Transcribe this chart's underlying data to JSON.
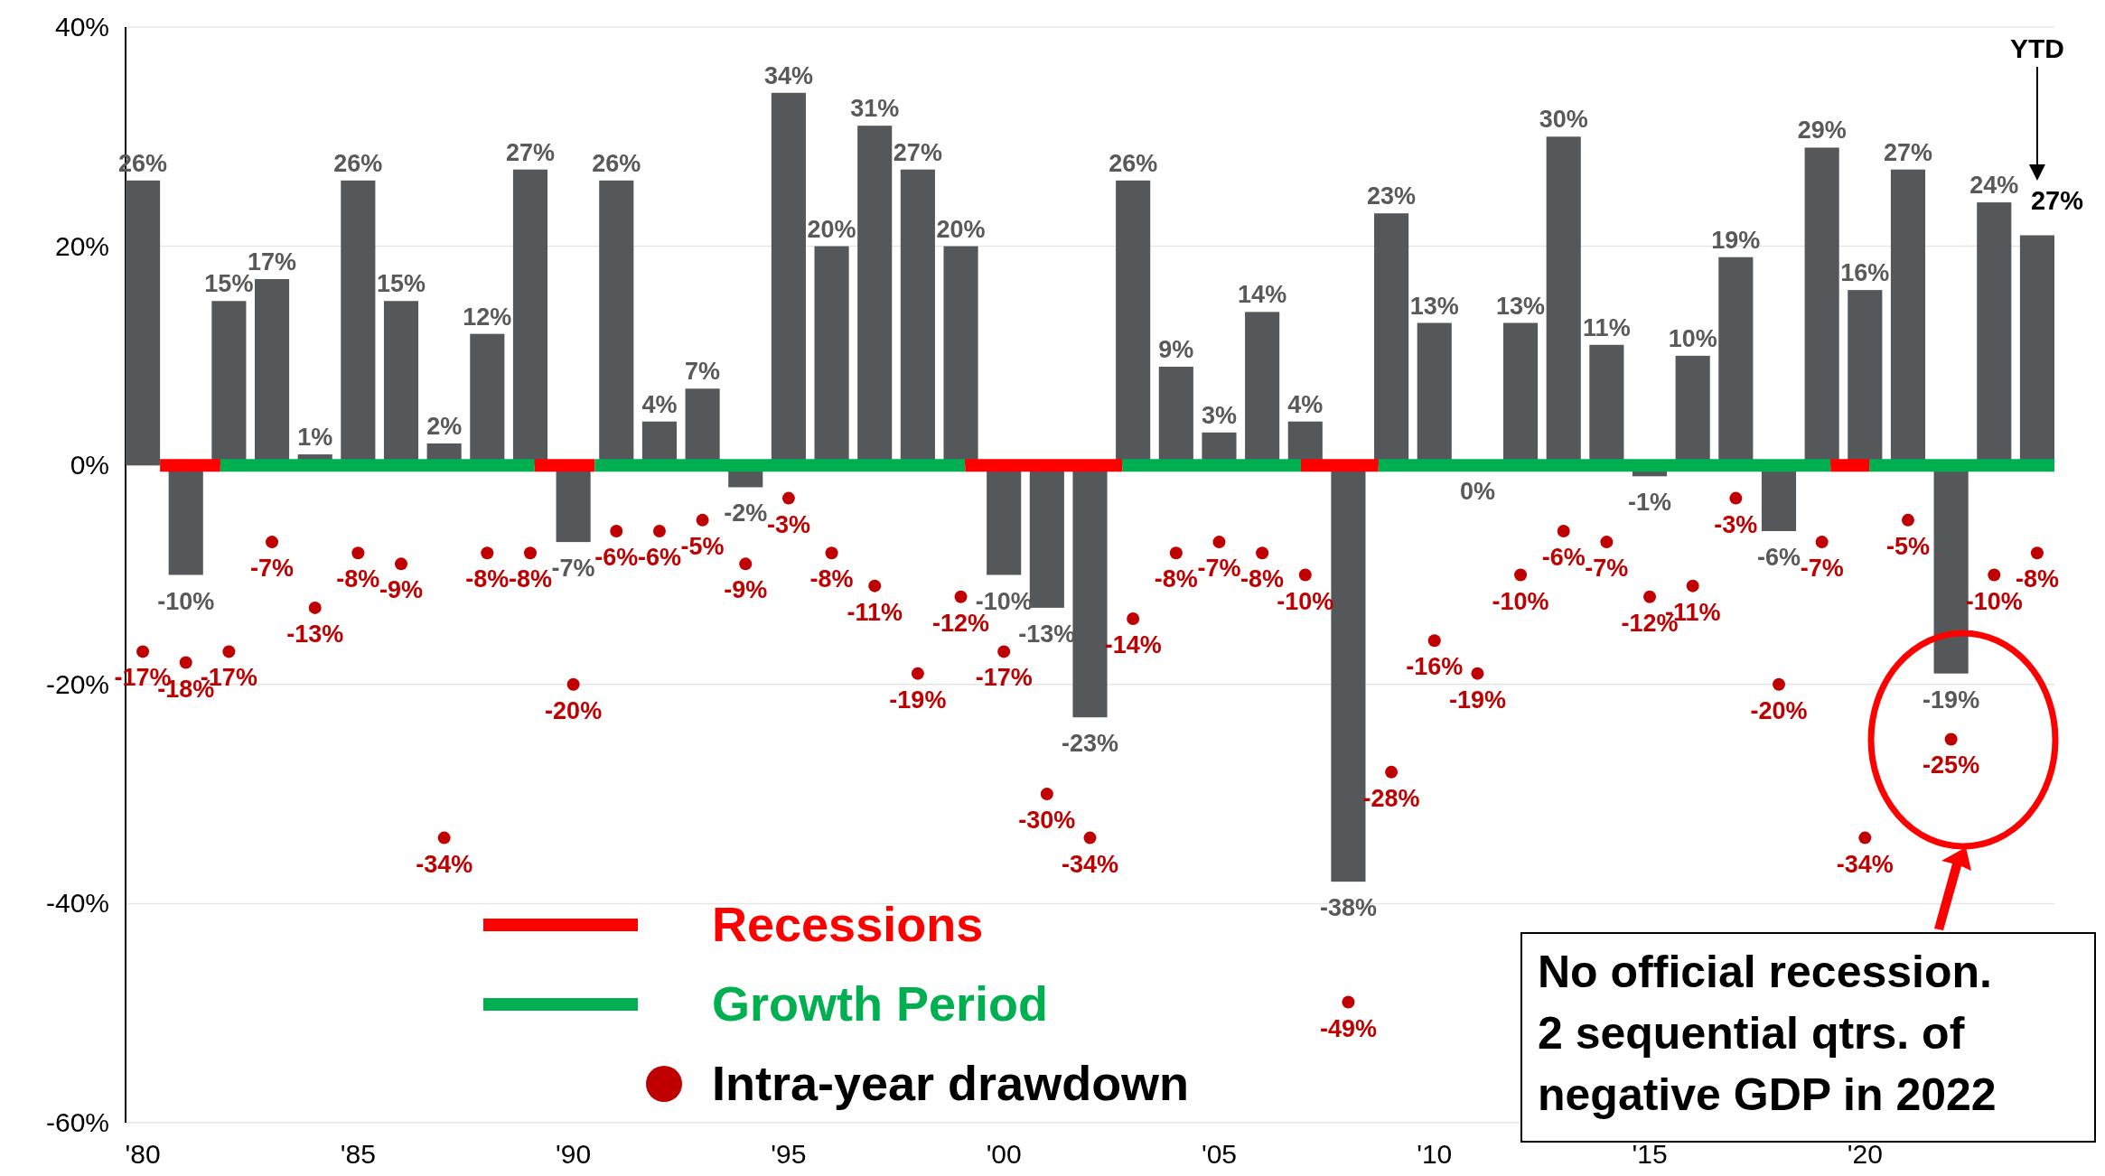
{
  "chart_data": {
    "type": "bar",
    "x": [
      1980,
      1981,
      1982,
      1983,
      1984,
      1985,
      1986,
      1987,
      1988,
      1989,
      1990,
      1991,
      1992,
      1993,
      1994,
      1995,
      1996,
      1997,
      1998,
      1999,
      2000,
      2001,
      2002,
      2003,
      2004,
      2005,
      2006,
      2007,
      2008,
      2009,
      2010,
      2011,
      2012,
      2013,
      2014,
      2015,
      2016,
      2017,
      2018,
      2019,
      2020,
      2021,
      2022,
      2023,
      2024
    ],
    "series": [
      {
        "color": "#55585b",
        "values": [
          26,
          -10,
          15,
          17,
          1,
          26,
          15,
          2,
          12,
          27,
          -7,
          26,
          4,
          7,
          -2,
          34,
          20,
          31,
          27,
          20,
          -10,
          -13,
          -23,
          26,
          9,
          3,
          14,
          4,
          -38,
          23,
          13,
          0,
          13,
          30,
          11,
          -1,
          10,
          19,
          -6,
          29,
          16,
          27,
          -19,
          24,
          21
        ],
        "value_labels": [
          "26%",
          "-10%",
          "15%",
          "17%",
          "1%",
          "26%",
          "15%",
          "2%",
          "12%",
          "27%",
          "-7%",
          "26%",
          "4%",
          "7%",
          "-2%",
          "34%",
          "20%",
          "31%",
          "27%",
          "20%",
          "-10%",
          "-13%",
          "-23%",
          "26%",
          "9%",
          "3%",
          "14%",
          "4%",
          "-38%",
          "23%",
          "13%",
          "0%",
          "13%",
          "30%",
          "11%",
          "-1%",
          "10%",
          "19%",
          "-6%",
          "29%",
          "16%",
          "27%",
          "-19%",
          "24%",
          null
        ]
      },
      {
        "type": "line",
        "name": "Recessions",
        "color": "#ff0000",
        "marker": "none",
        "x": [
          1980.4,
          1981.8
        ],
        "values": [
          0,
          0
        ]
      },
      {
        "type": "line",
        "name": "Growth Period",
        "color": "#00b050",
        "marker": "none",
        "x": [
          1981.8,
          1989.1
        ],
        "values": [
          0,
          0
        ]
      },
      {
        "type": "line",
        "color": "#ff0000",
        "marker": "none",
        "x": [
          1989.1,
          1990.5
        ],
        "values": [
          0,
          0
        ]
      },
      {
        "type": "line",
        "color": "#00b050",
        "marker": "none",
        "x": [
          1990.5,
          1999.1
        ],
        "values": [
          0,
          0
        ]
      },
      {
        "type": "line",
        "color": "#ff0000",
        "marker": "none",
        "x": [
          1999.1,
          2002.75
        ],
        "values": [
          0,
          0
        ]
      },
      {
        "type": "line",
        "color": "#00b050",
        "marker": "none",
        "x": [
          2002.75,
          2006.9
        ],
        "values": [
          0,
          0
        ]
      },
      {
        "type": "line",
        "color": "#ff0000",
        "marker": "none",
        "x": [
          2006.9,
          2008.7
        ],
        "values": [
          0,
          0
        ]
      },
      {
        "type": "line",
        "color": "#00b050",
        "marker": "none",
        "x": [
          2008.7,
          2019.2
        ],
        "values": [
          0,
          0
        ]
      },
      {
        "type": "line",
        "color": "#ff0000",
        "marker": "none",
        "x": [
          2019.2,
          2020.1
        ],
        "values": [
          0,
          0
        ]
      },
      {
        "type": "line",
        "color": "#00b050",
        "marker": "none",
        "x": [
          2020.1,
          2024.4
        ],
        "values": [
          0,
          0
        ]
      },
      {
        "type": "scatter",
        "name": "Intra-year drawdown",
        "color": "#c00000",
        "marker": "circle",
        "values": [
          -17,
          -18,
          -17,
          -7,
          -13,
          -8,
          -9,
          -34,
          -8,
          -8,
          -20,
          -6,
          -6,
          -5,
          -9,
          -3,
          -8,
          -11,
          -19,
          -12,
          -17,
          -30,
          -34,
          -14,
          -8,
          -7,
          -8,
          -10,
          -49,
          -28,
          -16,
          -19,
          -10,
          -6,
          -7,
          -12,
          -11,
          -3,
          -20,
          -7,
          -34,
          -5,
          -25,
          -10,
          -8
        ],
        "value_labels": [
          "-17%",
          "-18%",
          "-17%",
          "-7%",
          "-13%",
          "-8%",
          "-9%",
          "-34%",
          "-8%",
          "-8%",
          "-20%",
          "-6%",
          "-6%",
          "-5%",
          "-9%",
          "-3%",
          "-8%",
          "-11%",
          "-19%",
          "-12%",
          "-17%",
          "-30%",
          "-34%",
          "-14%",
          "-8%",
          "-7%",
          "-8%",
          "-10%",
          "-49%",
          "-28%",
          "-16%",
          "-19%",
          "-10%",
          "-6%",
          "-7%",
          "-12%",
          "-11%",
          "-3%",
          "-20%",
          "-7%",
          "-34%",
          "-5%",
          "-25%",
          "-10%",
          "-8%"
        ]
      }
    ],
    "annotations": [
      "YTD",
      {
        "text": "27%",
        "x": 2024,
        "y": 21
      },
      "No official recession.\n2 sequential qtrs. of\nnegative GDP in 2022"
    ],
    "xlim": [
      1979.6,
      2024.4
    ],
    "xticks": [
      {
        "value": 1980,
        "label": "'80"
      },
      {
        "value": 1985,
        "label": "'85"
      },
      {
        "value": 1990,
        "label": "'90"
      },
      {
        "value": 1995,
        "label": "'95"
      },
      {
        "value": 2000,
        "label": "'00"
      },
      {
        "value": 2005,
        "label": "'05"
      },
      {
        "value": 2010,
        "label": "'10"
      },
      {
        "value": 2015,
        "label": "'15"
      },
      {
        "value": 2020,
        "label": "'20"
      }
    ],
    "ylim": [
      -60,
      40
    ],
    "yticks": [
      {
        "value": -60,
        "label": "-60%"
      },
      {
        "value": -40,
        "label": "-40%"
      },
      {
        "value": -20,
        "label": "-20%"
      },
      {
        "value": 0,
        "label": "0%"
      },
      {
        "value": 20,
        "label": "20%"
      },
      {
        "value": 40,
        "label": "40%"
      }
    ],
    "grid": "y",
    "legend": "bottom",
    "line_style": "solid"
  }
}
